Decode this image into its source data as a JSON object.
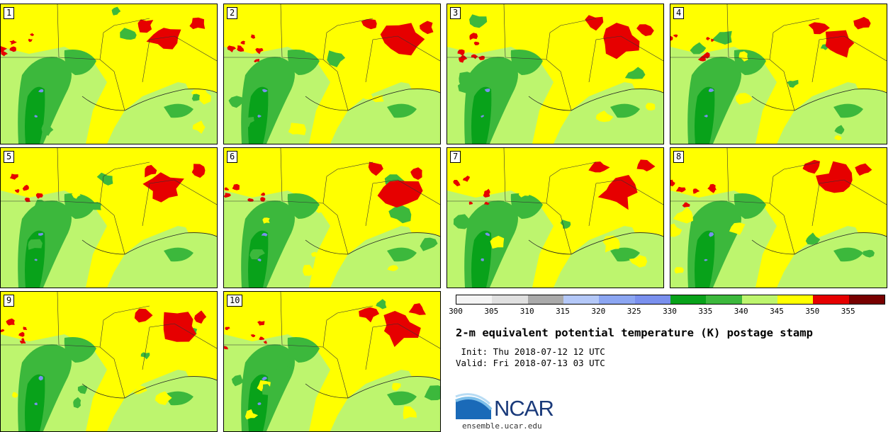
{
  "product": {
    "title": "2-m equivalent potential temperature (K) postage stamp",
    "init": " Init: Thu 2018-07-12 12 UTC",
    "valid": "Valid: Fri 2018-07-13 03 UTC"
  },
  "stamps": [
    {
      "label": "1"
    },
    {
      "label": "2"
    },
    {
      "label": "3"
    },
    {
      "label": "4"
    },
    {
      "label": "5"
    },
    {
      "label": "6"
    },
    {
      "label": "7"
    },
    {
      "label": "8"
    },
    {
      "label": "9"
    },
    {
      "label": "10"
    }
  ],
  "colorbar": {
    "labels": [
      "300",
      "305",
      "310",
      "315",
      "320",
      "325",
      "330",
      "335",
      "340",
      "345",
      "350",
      "355"
    ],
    "colors": [
      "#f4f4f4",
      "#e0e0e0",
      "#aaaaaa",
      "#b4c8f8",
      "#8ca6f2",
      "#7a90ee",
      "#08a21a",
      "#3cb83c",
      "#bdf56e",
      "#ffff00",
      "#e60000",
      "#780000"
    ]
  },
  "legend_colors": {
    "land_low": "#bdf56e",
    "green_mid": "#3cb83c",
    "green_dark": "#08a21a",
    "yellow": "#ffff00",
    "red": "#e60000",
    "blue": "#7a90ee"
  },
  "branding": {
    "logo_text": "NCAR",
    "url": "ensemble.ucar.edu"
  }
}
